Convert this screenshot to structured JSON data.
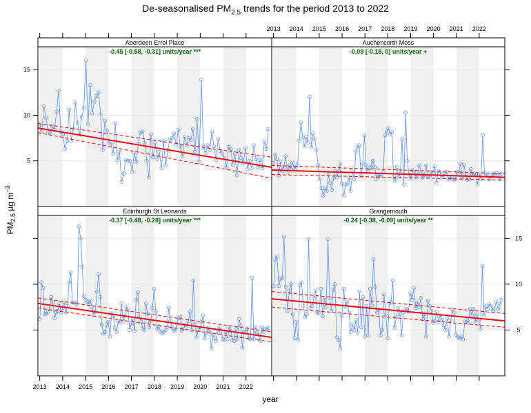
{
  "chart_data": {
    "type": "line",
    "title_main": "De-seasonalised PM",
    "title_sub": "2.5",
    "title_rest": " trends for the period 2013 to 2022",
    "xlabel": "year",
    "ylabel_main": "PM",
    "ylabel_sub": "2.5",
    "ylabel_rest": " µg m",
    "ylabel_sup": "−3",
    "xlim": [
      2012.92,
      2023.12
    ],
    "ylim": [
      0,
      17.5
    ],
    "x_ticks": [
      2013,
      2014,
      2015,
      2016,
      2017,
      2018,
      2019,
      2020,
      2021,
      2022
    ],
    "x_tick_labels": [
      "2013",
      "2014",
      "2015",
      "2016",
      "2017",
      "2018",
      "2019",
      "2020",
      "2021",
      "2022"
    ],
    "y_ticks": [
      5,
      10,
      15
    ],
    "y_tick_labels": [
      "5",
      "10",
      "15"
    ],
    "colors": {
      "points": "#6f98ea",
      "trend": "#ff0000",
      "annotation": "#006400",
      "shade": "#f0f0f0",
      "strip": "#ffffff"
    },
    "panels": [
      {
        "name": "Aberdeen Errol Place",
        "trend_text": "-0.45 [-0.58, -0.31] units/year ***",
        "trend": {
          "start": 8.6,
          "end": 4.3
        },
        "ci_low": {
          "start": 8.1,
          "end": 3.1
        },
        "ci_high": {
          "start": 9.1,
          "end": 5.4
        },
        "y": [
          9.0,
          8.3,
          11.0,
          9.7,
          8.2,
          8.0,
          8.8,
          8.4,
          10.4,
          12.7,
          8.2,
          7.9,
          6.3,
          7.2,
          10.6,
          7.2,
          8.5,
          11.4,
          9.2,
          7.9,
          9.8,
          10.8,
          16.0,
          9.0,
          13.3,
          10.2,
          11.5,
          12.1,
          12.5,
          10.1,
          6.2,
          9.4,
          8.3,
          7.0,
          6.9,
          5.8,
          9.1,
          5.1,
          6.0,
          2.7,
          3.6,
          5.1,
          5.0,
          5.0,
          3.8,
          5.9,
          4.9,
          6.9,
          8.1,
          8.2,
          7.0,
          5.0,
          3.2,
          7.9,
          5.4,
          7.0,
          5.2,
          6.0,
          4.2,
          7.2,
          4.5,
          6.2,
          7.3,
          7.5,
          8.0,
          6.8,
          8.4,
          6.5,
          5.5,
          7.6,
          6.8,
          7.5,
          7.3,
          8.5,
          6.0,
          9.6,
          4.9,
          13.9,
          6.5,
          5.9,
          6.7,
          6.2,
          8.2,
          6.6,
          5.1,
          7.4,
          6.1,
          5.8,
          5.3,
          4.3,
          6.5,
          6.3,
          4.6,
          5.8,
          3.4,
          6.2,
          5.3,
          4.8,
          6.4,
          4.1,
          5.0,
          4.2,
          6.7,
          5.2,
          4.3,
          5.1,
          4.2,
          7.1,
          6.3,
          8.5
        ]
      },
      {
        "name": "Auchencorth Moss",
        "trend_text": "-0.09 [-0.18, 0] units/year +",
        "trend": {
          "start": 4.0,
          "end": 3.2
        },
        "ci_low": {
          "start": 3.5,
          "end": 2.9
        },
        "ci_high": {
          "start": 4.5,
          "end": 3.6
        },
        "y": [
          4.8,
          5.7,
          5.2,
          3.4,
          4.9,
          3.9,
          4.3,
          5.5,
          3.8,
          4.5,
          4.1,
          4.8,
          4.2,
          4.3,
          4.6,
          7.2,
          9.2,
          7.6,
          6.6,
          7.6,
          7.0,
          12.0,
          6.5,
          8.0,
          7.4,
          6.2,
          4.5,
          3.0,
          2.0,
          1.2,
          2.0,
          1.7,
          3.5,
          2.6,
          1.8,
          3.1,
          3.9,
          3.2,
          3.9,
          4.7,
          2.5,
          1.2,
          2.4,
          2.5,
          3.2,
          1.7,
          3.9,
          3.0,
          6.0,
          6.5,
          6.7,
          3.3,
          4.7,
          7.8,
          4.5,
          3.9,
          4.2,
          4.5,
          5.0,
          4.3,
          3.0,
          3.5,
          3.3,
          3.5,
          3.8,
          7.8,
          8.2,
          8.6,
          7.9,
          8.2,
          3.2,
          2.8,
          4.3,
          3.2,
          3.9,
          7.4,
          2.4,
          10.3,
          5.0,
          3.5,
          3.1,
          4.0,
          3.8,
          3.2,
          3.5,
          4.5,
          3.7,
          3.2,
          3.5,
          4.5,
          3.3,
          3.3,
          3.8,
          3.7,
          4.4,
          2.6,
          3.9,
          3.8,
          3.4,
          3.2,
          3.6,
          3.8,
          3.0,
          3.1,
          3.2,
          2.9,
          3.0,
          3.8,
          3.7,
          4.7,
          3.1,
          4.6,
          3.6,
          2.9,
          3.0,
          4.1,
          3.5,
          3.6,
          3.5,
          2.5,
          3.5,
          3.0,
          7.8,
          3.7,
          3.4,
          3.4,
          3.0,
          3.3,
          3.6,
          3.4,
          3.7,
          3.5,
          3.0,
          3.6
        ]
      },
      {
        "name": "Edinburgh St Leonards",
        "trend_text": "-0.37 [-0.48, -0.28] units/year ***",
        "trend": {
          "start": 7.9,
          "end": 4.2
        },
        "ci_low": {
          "start": 7.4,
          "end": 3.7
        },
        "ci_high": {
          "start": 8.5,
          "end": 4.8
        },
        "y": [
          6.2,
          10.2,
          9.6,
          6.7,
          6.8,
          7.0,
          7.3,
          8.6,
          8.0,
          6.3,
          6.9,
          7.1,
          7.9,
          6.9,
          7.4,
          8.0,
          6.9,
          7.6,
          10.2,
          11.3,
          8.0,
          8.0,
          7.8,
          7.9,
          16.3,
          15.0,
          11.9,
          8.7,
          8.3,
          8.0,
          7.8,
          8.2,
          7.5,
          6.8,
          7.0,
          9.2,
          11.1,
          8.6,
          5.6,
          4.6,
          4.8,
          5.5,
          5.9,
          4.3,
          6.8,
          6.5,
          5.2,
          4.8,
          6.0,
          5.8,
          7.9,
          6.0,
          6.5,
          7.5,
          7.2,
          5.0,
          5.6,
          6.2,
          4.9,
          8.3,
          9.1,
          6.5,
          5.9,
          5.2,
          5.0,
          7.9,
          6.8,
          5.3,
          6.0,
          7.4,
          9.5,
          7.0,
          5.1,
          5.4,
          4.8,
          4.7,
          4.8,
          5.0,
          5.3,
          7.4,
          6.0,
          5.3,
          4.9,
          5.0,
          5.7,
          6.3,
          6.4,
          4.9,
          5.1,
          5.6,
          5.5,
          6.0,
          7.0,
          5.0,
          10.4,
          5.6,
          4.2,
          5.0,
          5.0,
          5.9,
          6.6,
          4.1,
          4.7,
          5.2,
          4.8,
          3.0,
          4.5,
          4.1,
          3.8,
          4.8,
          5.3,
          4.9,
          4.0,
          3.9,
          4.8,
          4.0,
          5.3,
          4.9,
          3.9,
          3.8,
          5.1,
          4.0,
          6.2,
          5.5,
          3.1,
          4.8,
          4.8,
          5.1,
          4.1,
          4.0,
          10.7,
          4.0,
          5.3,
          4.7,
          4.5,
          3.8,
          5.3,
          4.8,
          5.1,
          5.1,
          5.2
        ]
      },
      {
        "name": "Grangemouth",
        "trend_text": "-0.24 [-0.38, -0.09] units/year **",
        "trend": {
          "start": 8.4,
          "end": 6.0
        },
        "ci_low": {
          "start": 7.5,
          "end": 5.3
        },
        "ci_high": {
          "start": 9.2,
          "end": 6.8
        },
        "y": [
          9.8,
          12.7,
          13.0,
          9.8,
          10.6,
          10.7,
          15.2,
          9.7,
          7.1,
          9.3,
          10.0,
          6.7,
          4.1,
          5.9,
          3.9,
          9.9,
          10.2,
          7.6,
          6.4,
          6.7,
          14.9,
          7.4,
          7.6,
          8.5,
          9.3,
          6.8,
          6.9,
          9.5,
          6.5,
          8.3,
          7.5,
          14.9,
          8.5,
          7.1,
          9.4,
          10.0,
          4.2,
          3.9,
          3.0,
          6.6,
          9.5,
          7.6,
          8.1,
          6.9,
          4.8,
          5.6,
          5.0,
          6.1,
          4.7,
          9.2,
          5.3,
          8.6,
          4.3,
          7.6,
          4.4,
          9.5,
          7.7,
          12.7,
          9.7,
          6.9,
          7.2,
          4.4,
          5.0,
          8.9,
          6.7,
          4.1,
          7.9,
          8.0,
          10.4,
          5.2,
          6.4,
          7.4,
          6.7,
          4.4,
          6.9,
          7.2,
          7.3,
          7.0,
          9.0,
          8.3,
          9.6,
          7.4,
          8.0,
          7.5,
          8.5,
          6.2,
          6.7,
          4.3,
          8.2,
          7.6,
          7.1,
          5.8,
          6.0,
          7.0,
          5.9,
          6.6,
          6.1,
          5.5,
          5.0,
          6.3,
          4.3,
          6.0,
          7.2,
          6.9,
          4.5,
          4.2,
          4.1,
          4.3,
          4.0,
          5.8,
          6.1,
          5.8,
          7.3,
          6.6,
          7.3,
          5.9,
          6.7,
          6.1,
          5.1,
          12.0,
          6.6,
          7.6,
          7.3,
          7.8,
          7.6,
          7.1,
          7.3,
          8.1,
          7.3,
          7.8,
          8.3
        ]
      }
    ]
  }
}
